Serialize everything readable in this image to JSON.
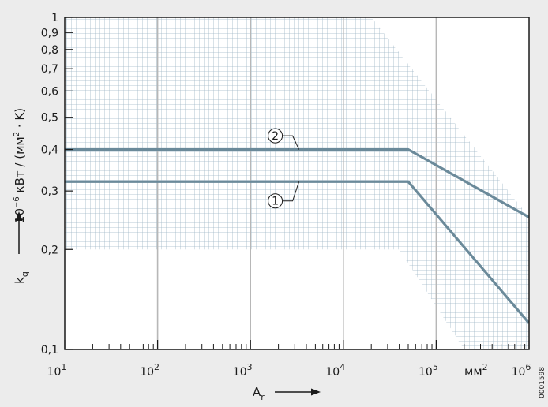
{
  "chart_data": {
    "type": "line",
    "x_scale": "log",
    "y_scale": "log",
    "xlim": [
      10,
      1000000
    ],
    "ylim": [
      0.1,
      1.0
    ],
    "grid": true,
    "xlabel": "A",
    "xlabel_sub": "r",
    "ylabel": "k",
    "ylabel_sub": "q",
    "yunit_prefix": "10",
    "yunit_exp": "−6",
    "yunit_body": " кВт / (мм",
    "yunit_exp2": "2",
    "yunit_tail": " · K)",
    "xunit": "мм",
    "xunit_exp": "2",
    "x_ticks": [
      {
        "value": 10,
        "base": "10",
        "exp": "1"
      },
      {
        "value": 100,
        "base": "10",
        "exp": "2"
      },
      {
        "value": 1000,
        "base": "10",
        "exp": "3"
      },
      {
        "value": 10000,
        "base": "10",
        "exp": "4"
      },
      {
        "value": 100000,
        "base": "10",
        "exp": "5"
      },
      {
        "value": 1000000,
        "base": "10",
        "exp": "6"
      }
    ],
    "y_ticks": [
      {
        "value": 1.0,
        "label": "1"
      },
      {
        "value": 0.9,
        "label": "0,9"
      },
      {
        "value": 0.8,
        "label": "0,8"
      },
      {
        "value": 0.7,
        "label": "0,7"
      },
      {
        "value": 0.6,
        "label": "0,6"
      },
      {
        "value": 0.5,
        "label": "0,5"
      },
      {
        "value": 0.4,
        "label": "0,4"
      },
      {
        "value": 0.3,
        "label": "0,3"
      },
      {
        "value": 0.2,
        "label": "0,2"
      },
      {
        "value": 0.1,
        "label": "0,1"
      }
    ],
    "shaded_region": {
      "upper": [
        [
          10,
          1.0
        ],
        [
          20000,
          1.0
        ],
        [
          1000000,
          0.25
        ]
      ],
      "lower": [
        [
          1000000,
          0.1
        ],
        [
          200000,
          0.1
        ],
        [
          40000,
          0.2
        ],
        [
          10,
          0.2
        ]
      ]
    },
    "series": [
      {
        "callout": "2",
        "x": [
          10,
          50000,
          1000000
        ],
        "y": [
          0.4,
          0.4,
          0.25
        ],
        "color": "#6b8a9a"
      },
      {
        "callout": "1",
        "x": [
          10,
          50000,
          1000000
        ],
        "y": [
          0.32,
          0.32,
          0.12
        ],
        "color": "#6b8a9a"
      }
    ],
    "annotations": [
      {
        "text": "2",
        "x": 2000,
        "y": 0.44
      },
      {
        "text": "1",
        "x": 2000,
        "y": 0.28
      }
    ],
    "figure_code": "0001598"
  },
  "colors": {
    "background": "#ececec",
    "plot_bg": "#ffffff",
    "hatch": "#9fb6c6",
    "major_grid": "#b7b7b7",
    "series": "#6b8a9a",
    "axis": "#1a1a1a"
  }
}
